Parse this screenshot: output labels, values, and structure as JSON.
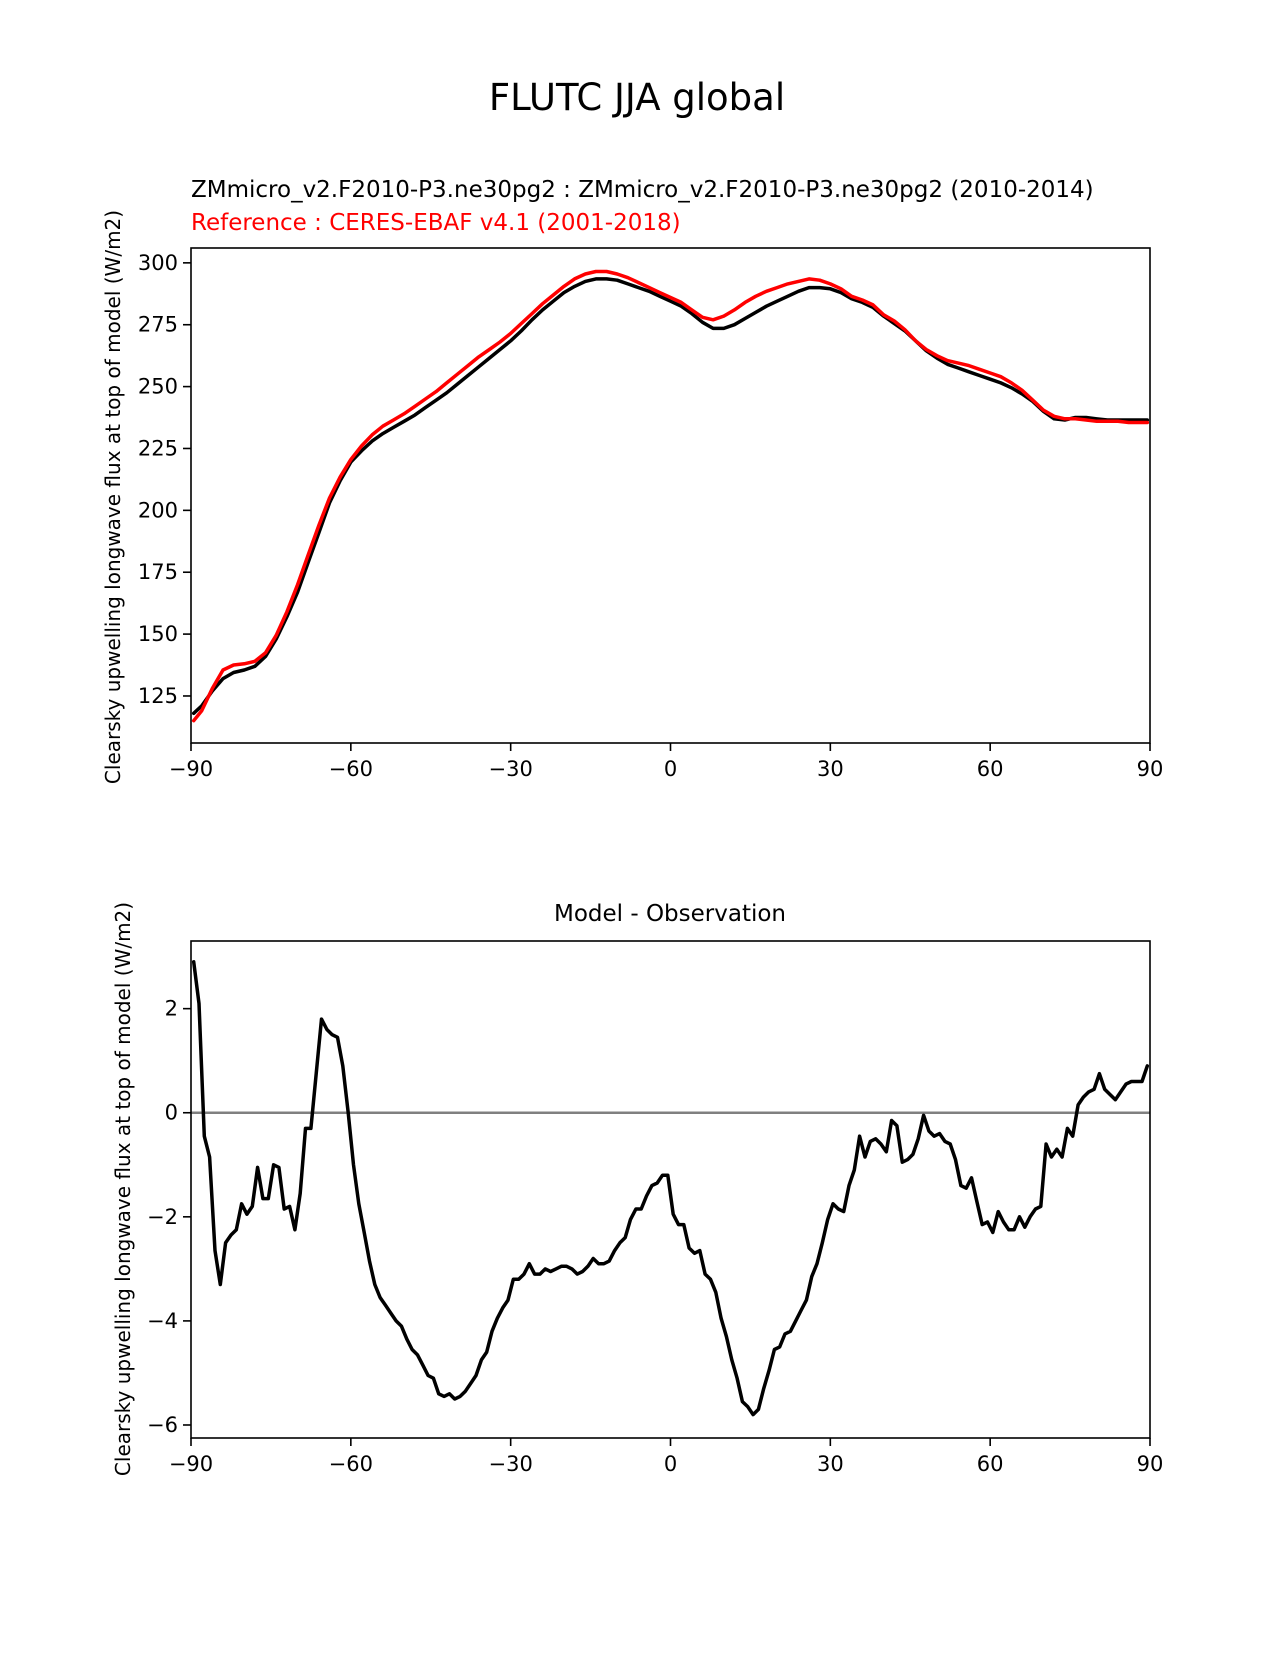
{
  "figure": {
    "suptitle": "FLUTC JJA global"
  },
  "chart_data": [
    {
      "type": "line",
      "title": "ZMmicro_v2.F2010-P3.ne30pg2 : ZMmicro_v2.F2010-P3.ne30pg2 (2010-2014)",
      "subtitle": "Reference : CERES-EBAF v4.1 (2001-2018)",
      "xlabel": "",
      "ylabel": "Clearsky upwelling longwave flux at top of model (W/m2)",
      "xlim": [
        -90,
        90
      ],
      "ylim": [
        106,
        306
      ],
      "xticks": [
        -90,
        -60,
        -30,
        0,
        30,
        60,
        90
      ],
      "xtick_labels": [
        "−90",
        "−60",
        "−30",
        "0",
        "30",
        "60",
        "90"
      ],
      "yticks": [
        125,
        150,
        175,
        200,
        225,
        250,
        275,
        300
      ],
      "ytick_labels": [
        "125",
        "150",
        "175",
        "200",
        "225",
        "250",
        "275",
        "300"
      ],
      "grid": false,
      "series": [
        {
          "color": "#000000",
          "x": [
            -89.5,
            -88,
            -86,
            -84,
            -82,
            -80,
            -78,
            -76,
            -74,
            -72,
            -70,
            -68,
            -66,
            -64,
            -62,
            -60,
            -58,
            -56,
            -54,
            -52,
            -50,
            -48,
            -46,
            -44,
            -42,
            -40,
            -38,
            -36,
            -34,
            -32,
            -30,
            -28,
            -26,
            -24,
            -22,
            -20,
            -18,
            -16,
            -14,
            -12,
            -10,
            -8,
            -6,
            -4,
            -2,
            0,
            2,
            4,
            6,
            8,
            10,
            12,
            14,
            16,
            18,
            20,
            22,
            24,
            26,
            28,
            30,
            32,
            34,
            36,
            38,
            40,
            42,
            44,
            46,
            48,
            50,
            52,
            54,
            56,
            58,
            60,
            62,
            64,
            66,
            68,
            70,
            72,
            74,
            76,
            78,
            80,
            82,
            84,
            86,
            88,
            89.5
          ],
          "y": [
            118,
            121,
            127,
            132,
            134.5,
            135.5,
            137,
            141,
            148,
            157,
            167,
            179,
            191,
            203,
            212,
            219.5,
            224,
            228,
            231,
            233.5,
            236,
            238.5,
            241.5,
            244.5,
            247.5,
            251,
            254.5,
            258,
            261.5,
            265,
            268.5,
            272.5,
            277,
            281,
            284.5,
            288,
            290.5,
            292.5,
            293.5,
            293.5,
            293,
            291.5,
            290,
            288.5,
            286.5,
            284.5,
            282.5,
            279.5,
            276,
            273.5,
            273.5,
            275,
            277.5,
            280,
            282.5,
            284.5,
            286.5,
            288.5,
            290,
            290,
            289.5,
            288,
            285.5,
            284,
            282,
            278.5,
            275.5,
            272.5,
            268.5,
            264.5,
            261.5,
            259,
            257.5,
            256,
            254.5,
            253,
            251.5,
            249.5,
            247,
            244,
            240,
            237,
            236.5,
            237.5,
            237.5,
            237,
            236.5,
            236.5,
            236.5,
            236.5,
            236.5
          ]
        },
        {
          "color": "#ff0000",
          "x": [
            -89.5,
            -88,
            -86,
            -84,
            -82,
            -80,
            -78,
            -76,
            -74,
            -72,
            -70,
            -68,
            -66,
            -64,
            -62,
            -60,
            -58,
            -56,
            -54,
            -52,
            -50,
            -48,
            -46,
            -44,
            -42,
            -40,
            -38,
            -36,
            -34,
            -32,
            -30,
            -28,
            -26,
            -24,
            -22,
            -20,
            -18,
            -16,
            -14,
            -12,
            -10,
            -8,
            -6,
            -4,
            -2,
            0,
            2,
            4,
            6,
            8,
            10,
            12,
            14,
            16,
            18,
            20,
            22,
            24,
            26,
            28,
            30,
            32,
            34,
            36,
            38,
            40,
            42,
            44,
            46,
            48,
            50,
            52,
            54,
            56,
            58,
            60,
            62,
            64,
            66,
            68,
            70,
            72,
            74,
            76,
            78,
            80,
            82,
            84,
            86,
            88,
            89.5
          ],
          "y": [
            115,
            119,
            128,
            135.5,
            137.5,
            138,
            139,
            142.5,
            149.5,
            159,
            170,
            182,
            194,
            205,
            213.5,
            220.5,
            226,
            230.5,
            234,
            236.5,
            239,
            242,
            245,
            248,
            251.5,
            255,
            258.5,
            262,
            265,
            268,
            271.5,
            275.5,
            279.5,
            283.5,
            287,
            290.5,
            293.5,
            295.5,
            296.5,
            296.5,
            295.5,
            294,
            292,
            290,
            288,
            286,
            284,
            281,
            278,
            277,
            278.5,
            281,
            284,
            286.5,
            288.5,
            290,
            291.5,
            292.5,
            293.5,
            293,
            291.5,
            289.5,
            286.5,
            285,
            283,
            279,
            276.5,
            273,
            268.5,
            265,
            262.5,
            260.5,
            259.5,
            258.5,
            257,
            255.5,
            254,
            251.5,
            248.5,
            244.5,
            240.5,
            238,
            237,
            237,
            236.5,
            236,
            236,
            236,
            235.5,
            235.5,
            235.5
          ]
        }
      ]
    },
    {
      "type": "line",
      "title": "Model - Observation",
      "xlabel": "",
      "ylabel": "Clearsky upwelling longwave flux at top of model (W/m2)",
      "xlim": [
        -90,
        90
      ],
      "ylim": [
        -6.25,
        3.3
      ],
      "xticks": [
        -90,
        -60,
        -30,
        0,
        30,
        60,
        90
      ],
      "xtick_labels": [
        "−90",
        "−60",
        "−30",
        "0",
        "30",
        "60",
        "90"
      ],
      "yticks": [
        -6,
        -4,
        -2,
        0,
        2
      ],
      "ytick_labels": [
        "−6",
        "−4",
        "−2",
        "0",
        "2"
      ],
      "grid": false,
      "zero_line": {
        "y": 0,
        "color": "#808080"
      },
      "series": [
        {
          "color": "#000000",
          "x": [
            -89.5,
            -88.5,
            -87.5,
            -86.5,
            -85.5,
            -84.5,
            -83.5,
            -82.5,
            -81.5,
            -80.5,
            -79.5,
            -78.5,
            -77.5,
            -76.5,
            -75.5,
            -74.5,
            -73.5,
            -72.5,
            -71.5,
            -70.5,
            -69.5,
            -68.5,
            -67.5,
            -66.5,
            -65.5,
            -64.5,
            -63.5,
            -62.5,
            -61.5,
            -60.5,
            -59.5,
            -58.5,
            -57.5,
            -56.5,
            -55.5,
            -54.5,
            -53.5,
            -52.5,
            -51.5,
            -50.5,
            -49.5,
            -48.5,
            -47.5,
            -46.5,
            -45.5,
            -44.5,
            -43.5,
            -42.5,
            -41.5,
            -40.5,
            -39.5,
            -38.5,
            -37.5,
            -36.5,
            -35.5,
            -34.5,
            -33.5,
            -32.5,
            -31.5,
            -30.5,
            -29.5,
            -28.5,
            -27.5,
            -26.5,
            -25.5,
            -24.5,
            -23.5,
            -22.5,
            -21.5,
            -20.5,
            -19.5,
            -18.5,
            -17.5,
            -16.5,
            -15.5,
            -14.5,
            -13.5,
            -12.5,
            -11.5,
            -10.5,
            -9.5,
            -8.5,
            -7.5,
            -6.5,
            -5.5,
            -4.5,
            -3.5,
            -2.5,
            -1.5,
            -0.5,
            0.5,
            1.5,
            2.5,
            3.5,
            4.5,
            5.5,
            6.5,
            7.5,
            8.5,
            9.5,
            10.5,
            11.5,
            12.5,
            13.5,
            14.5,
            15.5,
            16.5,
            17.5,
            18.5,
            19.5,
            20.5,
            21.5,
            22.5,
            23.5,
            24.5,
            25.5,
            26.5,
            27.5,
            28.5,
            29.5,
            30.5,
            31.5,
            32.5,
            33.5,
            34.5,
            35.5,
            36.5,
            37.5,
            38.5,
            39.5,
            40.5,
            41.5,
            42.5,
            43.5,
            44.5,
            45.5,
            46.5,
            47.5,
            48.5,
            49.5,
            50.5,
            51.5,
            52.5,
            53.5,
            54.5,
            55.5,
            56.5,
            57.5,
            58.5,
            59.5,
            60.5,
            61.5,
            62.5,
            63.5,
            64.5,
            65.5,
            66.5,
            67.5,
            68.5,
            69.5,
            70.5,
            71.5,
            72.5,
            73.5,
            74.5,
            75.5,
            76.5,
            77.5,
            78.5,
            79.5,
            80.5,
            81.5,
            82.5,
            83.5,
            84.5,
            85.5,
            86.5,
            87.5,
            88.5,
            89.5
          ],
          "y": [
            2.9,
            2.1,
            -0.45,
            -0.85,
            -2.65,
            -3.3,
            -2.5,
            -2.35,
            -2.25,
            -1.75,
            -1.95,
            -1.8,
            -1.05,
            -1.65,
            -1.65,
            -1.0,
            -1.05,
            -1.85,
            -1.8,
            -2.25,
            -1.55,
            -0.3,
            -0.3,
            0.75,
            1.8,
            1.6,
            1.5,
            1.45,
            0.9,
            0.0,
            -1.0,
            -1.75,
            -2.3,
            -2.85,
            -3.3,
            -3.55,
            -3.7,
            -3.85,
            -4.0,
            -4.1,
            -4.35,
            -4.55,
            -4.65,
            -4.85,
            -5.05,
            -5.1,
            -5.4,
            -5.45,
            -5.4,
            -5.5,
            -5.45,
            -5.35,
            -5.2,
            -5.05,
            -4.75,
            -4.6,
            -4.2,
            -3.95,
            -3.75,
            -3.6,
            -3.2,
            -3.2,
            -3.1,
            -2.9,
            -3.1,
            -3.1,
            -3.0,
            -3.05,
            -3.0,
            -2.95,
            -2.95,
            -3.0,
            -3.1,
            -3.05,
            -2.95,
            -2.8,
            -2.9,
            -2.9,
            -2.85,
            -2.65,
            -2.5,
            -2.4,
            -2.05,
            -1.85,
            -1.85,
            -1.6,
            -1.4,
            -1.35,
            -1.2,
            -1.2,
            -1.95,
            -2.15,
            -2.15,
            -2.6,
            -2.7,
            -2.65,
            -3.1,
            -3.2,
            -3.45,
            -3.95,
            -4.3,
            -4.75,
            -5.1,
            -5.55,
            -5.65,
            -5.8,
            -5.7,
            -5.3,
            -4.95,
            -4.55,
            -4.5,
            -4.25,
            -4.2,
            -4.0,
            -3.8,
            -3.6,
            -3.15,
            -2.9,
            -2.5,
            -2.05,
            -1.75,
            -1.85,
            -1.9,
            -1.4,
            -1.1,
            -0.45,
            -0.85,
            -0.55,
            -0.5,
            -0.6,
            -0.75,
            -0.15,
            -0.25,
            -0.95,
            -0.9,
            -0.8,
            -0.5,
            -0.05,
            -0.35,
            -0.45,
            -0.4,
            -0.55,
            -0.6,
            -0.9,
            -1.4,
            -1.45,
            -1.25,
            -1.7,
            -2.15,
            -2.1,
            -2.3,
            -1.9,
            -2.1,
            -2.25,
            -2.25,
            -2.0,
            -2.2,
            -2.0,
            -1.85,
            -1.8,
            -0.6,
            -0.85,
            -0.7,
            -0.85,
            -0.3,
            -0.45,
            0.15,
            0.3,
            0.4,
            0.45,
            0.75,
            0.45,
            0.35,
            0.25,
            0.4,
            0.55,
            0.6,
            0.6,
            0.6,
            0.9
          ]
        }
      ]
    }
  ]
}
